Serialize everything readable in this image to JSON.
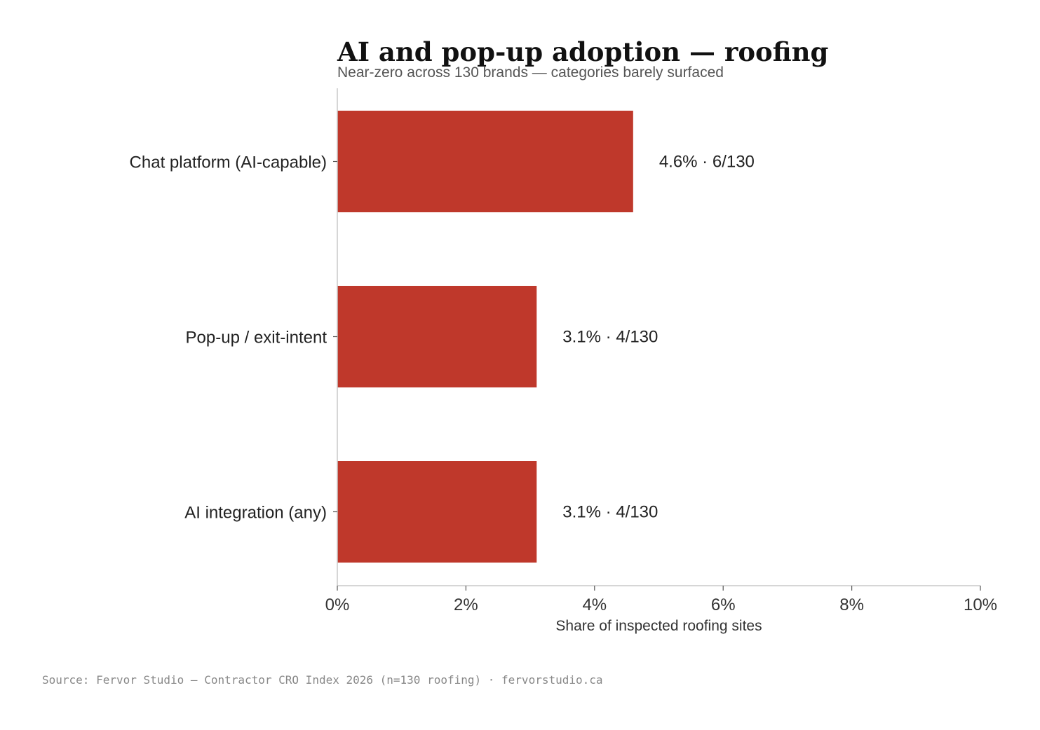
{
  "header": {
    "title": "AI and pop-up adoption — roofing",
    "subtitle": "Near-zero across 130 brands — categories barely surfaced"
  },
  "footer": {
    "source": "Source: Fervor Studio — Contractor CRO Index 2026 (n=130 roofing) · fervorstudio.ca"
  },
  "colors": {
    "bar": "#bf382b",
    "axis": "#c8c8c8"
  },
  "chart_data": {
    "type": "bar",
    "orientation": "horizontal",
    "title": "AI and pop-up adoption — roofing",
    "subtitle": "Near-zero across 130 brands — categories barely surfaced",
    "xlabel": "Share of inspected roofing sites",
    "ylabel": "",
    "xlim": [
      0,
      10
    ],
    "x_ticks": [
      0,
      2,
      4,
      6,
      8,
      10
    ],
    "x_tick_labels": [
      "0%",
      "2%",
      "4%",
      "6%",
      "8%",
      "10%"
    ],
    "categories": [
      "Chat platform (AI-capable)",
      "Pop-up / exit-intent",
      "AI integration (any)"
    ],
    "values": [
      4.6,
      3.1,
      3.1
    ],
    "value_labels": [
      "4.6% · 6/130",
      "3.1% · 4/130",
      "3.1% · 4/130"
    ],
    "grid": false,
    "legend": "none"
  }
}
